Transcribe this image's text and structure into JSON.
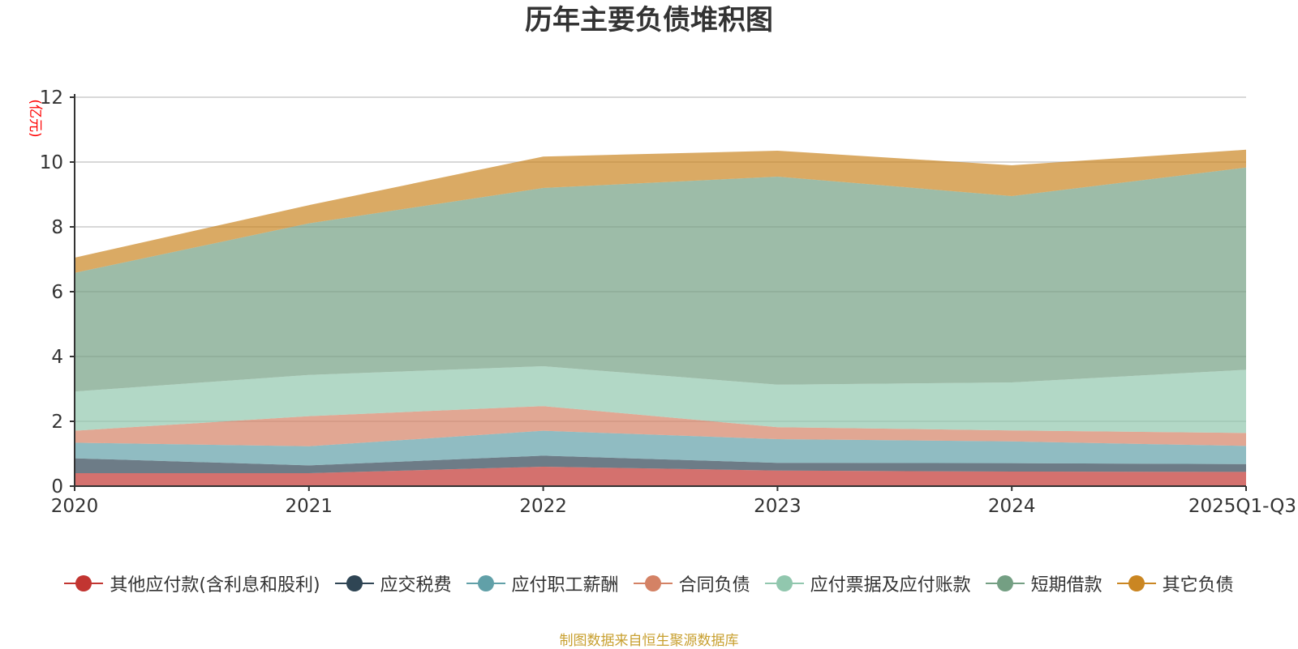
{
  "chart_data": {
    "type": "area",
    "title": "历年主要负债堆积图",
    "ylabel": "(亿元)",
    "categories": [
      "2020",
      "2021",
      "2022",
      "2023",
      "2024",
      "2025Q1-Q3"
    ],
    "ylim": [
      0,
      12
    ],
    "yticks": [
      0,
      2,
      4,
      6,
      8,
      10,
      12
    ],
    "grid": true,
    "stacked": true,
    "legend_position": "bottom",
    "series": [
      {
        "name": "其他应付款(含利息和股利)",
        "color": "#c23531",
        "values": [
          0.4,
          0.4,
          0.6,
          0.48,
          0.45,
          0.44
        ]
      },
      {
        "name": "应交税费",
        "color": "#2f4554",
        "values": [
          0.46,
          0.24,
          0.34,
          0.24,
          0.26,
          0.24
        ]
      },
      {
        "name": "应付职工薪酬",
        "color": "#61a0a8",
        "values": [
          0.48,
          0.59,
          0.77,
          0.73,
          0.67,
          0.56
        ]
      },
      {
        "name": "合同负债",
        "color": "#d48265",
        "values": [
          0.37,
          0.93,
          0.76,
          0.37,
          0.34,
          0.4
        ]
      },
      {
        "name": "应付票据及应付账款",
        "color": "#91c7ae",
        "values": [
          1.21,
          1.27,
          1.23,
          1.31,
          1.48,
          1.95
        ]
      },
      {
        "name": "短期借款",
        "color": "#749f83",
        "values": [
          3.66,
          4.68,
          5.5,
          6.42,
          5.75,
          6.24
        ]
      },
      {
        "name": "其它负债",
        "color": "#ca8622",
        "values": [
          0.47,
          0.56,
          0.97,
          0.8,
          0.95,
          0.55
        ]
      }
    ]
  },
  "source_text": "制图数据来自恒生聚源数据库",
  "colors": {
    "unit_label": "#ff0000",
    "source_text": "#c8a030",
    "grid": "#cccccc",
    "axis": "#333333"
  }
}
